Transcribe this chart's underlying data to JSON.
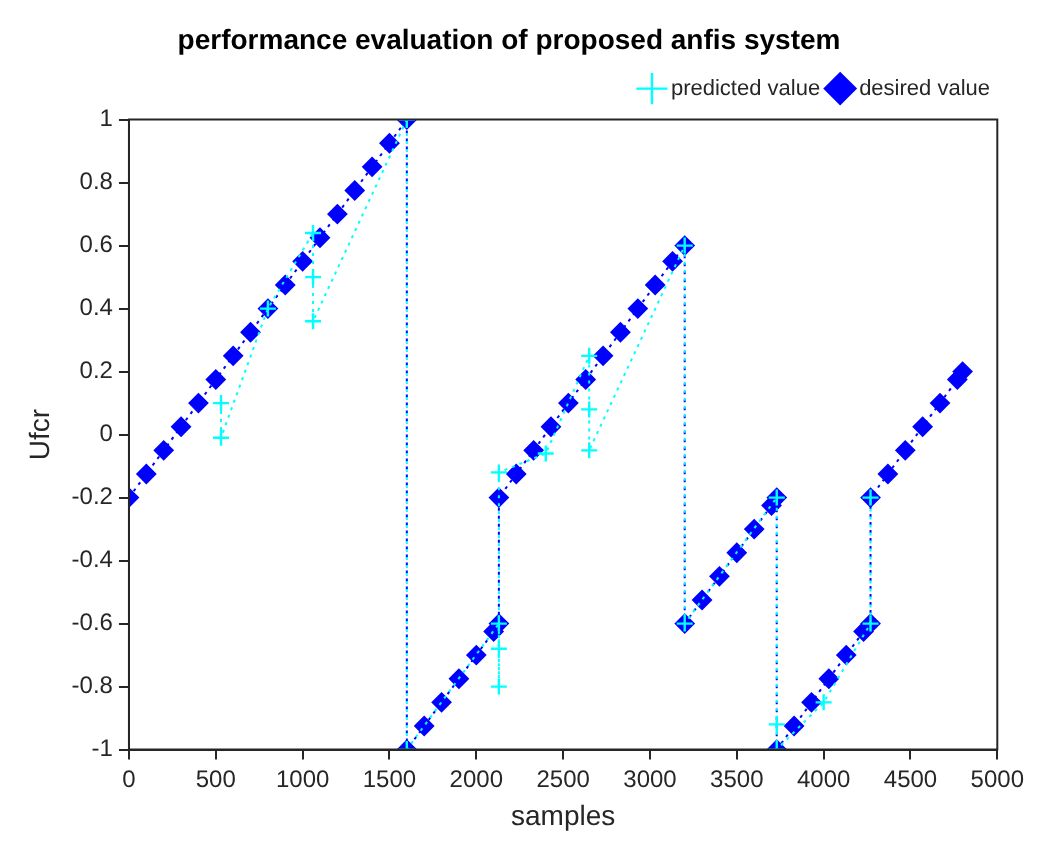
{
  "chart_data": {
    "type": "line",
    "title": "performance evaluation of proposed anfis system",
    "xlabel": "samples",
    "ylabel": "Ufcr",
    "xlim": [
      0,
      5000
    ],
    "xticks": [
      0,
      500,
      1000,
      1500,
      2000,
      2500,
      3000,
      3500,
      4000,
      4500,
      5000
    ],
    "ylim": [
      -1,
      1
    ],
    "yticks": [
      -1,
      -0.8,
      -0.6,
      -0.4,
      -0.2,
      0,
      0.2,
      0.4,
      0.6,
      0.8,
      1
    ],
    "grid": false,
    "legend": "top right",
    "series": [
      {
        "name": "predicted value",
        "color": "#00ffff",
        "marker": "cross",
        "line_style": "dotted",
        "x": [
          530,
          530,
          800,
          1060,
          1060,
          1060,
          1600,
          1600,
          2130,
          2130,
          2130,
          2130,
          2400,
          2650,
          2650,
          2650,
          3200,
          3200,
          3730,
          3730,
          3730,
          4000,
          4270,
          4270
        ],
        "values": [
          0.1,
          -0.01,
          0.4,
          0.64,
          0.5,
          0.36,
          1,
          -1,
          -0.6,
          -0.68,
          -0.8,
          -0.12,
          -0.06,
          0.25,
          0.08,
          -0.05,
          0.6,
          -0.6,
          -0.2,
          -0.92,
          -1,
          -0.85,
          -0.6,
          -0.2
        ]
      },
      {
        "name": "desired value",
        "color": "#0000ff",
        "marker": "diamond",
        "line_style": "dotted",
        "x": [
          0,
          100,
          200,
          300,
          400,
          500,
          600,
          700,
          800,
          900,
          1000,
          1100,
          1200,
          1300,
          1400,
          1500,
          1600,
          1600,
          1700,
          1800,
          1900,
          2000,
          2100,
          2130,
          2130,
          2230,
          2330,
          2430,
          2530,
          2630,
          2730,
          2830,
          2930,
          3030,
          3130,
          3200,
          3200,
          3300,
          3400,
          3500,
          3600,
          3700,
          3730,
          3730,
          3830,
          3930,
          4030,
          4130,
          4230,
          4270,
          4270,
          4370,
          4470,
          4570,
          4670,
          4770,
          4800
        ],
        "values": [
          -0.2,
          -0.125,
          -0.05,
          0.025,
          0.1,
          0.175,
          0.25,
          0.325,
          0.4,
          0.475,
          0.55,
          0.625,
          0.7,
          0.775,
          0.85,
          0.925,
          1,
          -1,
          -0.925,
          -0.85,
          -0.775,
          -0.7,
          -0.625,
          -0.6,
          -0.2,
          -0.125,
          -0.05,
          0.025,
          0.1,
          0.175,
          0.25,
          0.325,
          0.4,
          0.475,
          0.55,
          0.6,
          -0.6,
          -0.525,
          -0.45,
          -0.375,
          -0.3,
          -0.225,
          -0.2,
          -1,
          -0.925,
          -0.85,
          -0.775,
          -0.7,
          -0.625,
          -0.6,
          -0.2,
          -0.125,
          -0.05,
          0.025,
          0.1,
          0.175,
          0.2
        ]
      }
    ]
  }
}
